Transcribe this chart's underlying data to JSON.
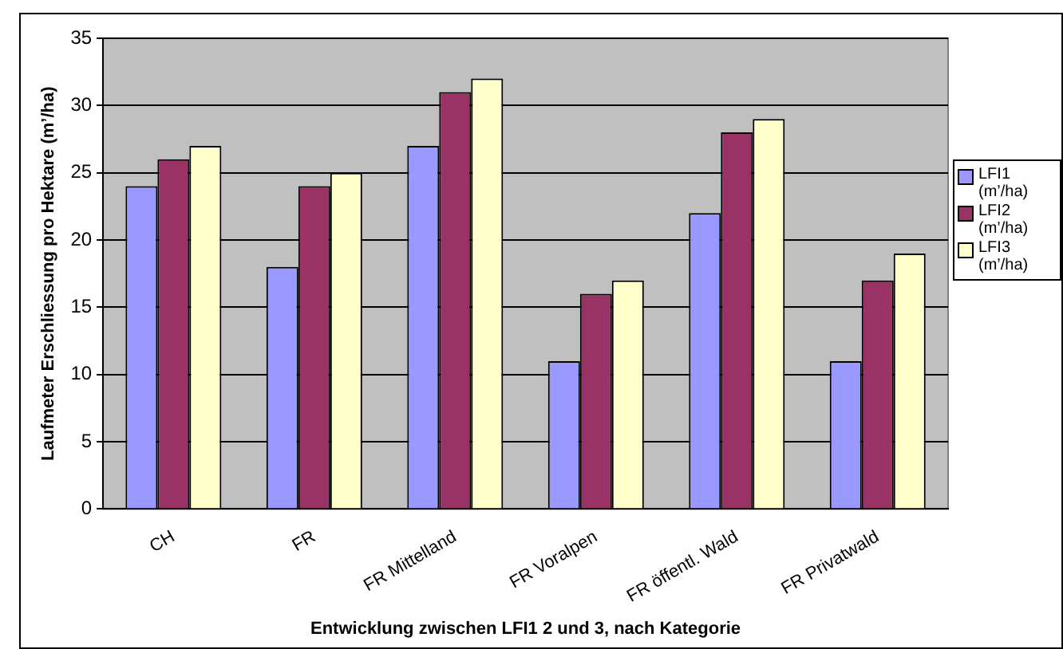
{
  "chart_data": {
    "type": "bar",
    "xlabel": "Entwicklung zwischen LFI1 2 und 3, nach Kategorie",
    "ylabel": "Laufmeter Erschliessung pro Hektare (m’/ha)",
    "categories": [
      "CH",
      "FR",
      "FR Mittelland",
      "FR Voralpen",
      "FR öffentl. Wald",
      "FR Privatwald"
    ],
    "series": [
      {
        "name": "LFI1 (m’/ha)",
        "color": "#9999ff",
        "values": [
          24,
          18,
          27,
          11,
          22,
          11
        ]
      },
      {
        "name": "LFI2 (m’/ha)",
        "color": "#993366",
        "values": [
          26,
          24,
          31,
          16,
          28,
          17
        ]
      },
      {
        "name": "LFI3 (m’/ha)",
        "color": "#ffffcc",
        "values": [
          27,
          25,
          32,
          17,
          29,
          19
        ]
      }
    ],
    "ylim": [
      0,
      35
    ],
    "yticks": [
      0,
      5,
      10,
      15,
      20,
      25,
      30,
      35
    ],
    "grid": "y",
    "legend": "right"
  }
}
